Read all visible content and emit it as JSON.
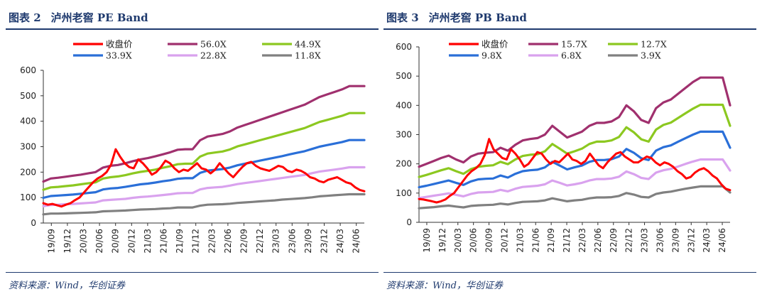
{
  "charts": [
    {
      "figure_label": "图表 2",
      "figure_title": "泸州老窖 PE Band",
      "source": "资料来源：Wind，华创证券"
    },
    {
      "figure_label": "图表 3",
      "figure_title": "泸州老窖 PB Band",
      "source": "资料来源：Wind，华创证券"
    }
  ],
  "chart_data": [
    {
      "type": "line",
      "title": "泸州老窖 PE Band",
      "x_ticks": [
        "19/09",
        "19/12",
        "20/03",
        "20/06",
        "20/09",
        "20/12",
        "21/03",
        "21/06",
        "21/09",
        "21/12",
        "22/03",
        "22/06",
        "22/09",
        "22/12",
        "23/03",
        "23/06",
        "23/09",
        "23/12",
        "24/03",
        "24/06"
      ],
      "ylim": [
        0,
        600
      ],
      "y_ticks": [
        "0",
        "100",
        "200",
        "300",
        "400",
        "500",
        "600"
      ],
      "legend_position": "top",
      "series": [
        {
          "name": "收盘价",
          "color": "#ff0000",
          "values": [
            78,
            72,
            75,
            70,
            65,
            72,
            78,
            90,
            100,
            120,
            140,
            160,
            175,
            185,
            200,
            230,
            290,
            260,
            235,
            220,
            215,
            250,
            235,
            215,
            190,
            200,
            220,
            245,
            235,
            215,
            200,
            210,
            205,
            220,
            235,
            215,
            210,
            195,
            210,
            235,
            215,
            195,
            180,
            200,
            220,
            235,
            240,
            225,
            215,
            210,
            205,
            215,
            225,
            220,
            205,
            200,
            210,
            205,
            195,
            180,
            175,
            165,
            160,
            170,
            175,
            180,
            170,
            160,
            155,
            140,
            130,
            125
          ]
        },
        {
          "name": "56.0X",
          "color": "#a0306e",
          "values": [
            163,
            175,
            178,
            182,
            186,
            190,
            195,
            200,
            218,
            225,
            228,
            235,
            243,
            250,
            255,
            262,
            270,
            278,
            288,
            290,
            290,
            325,
            340,
            345,
            350,
            360,
            375,
            385,
            395,
            405,
            415,
            425,
            435,
            445,
            455,
            465,
            480,
            495,
            505,
            515,
            525,
            538,
            538,
            538
          ]
        },
        {
          "name": "44.9X",
          "color": "#8cc820",
          "values": [
            131,
            140,
            142,
            145,
            148,
            152,
            156,
            160,
            175,
            180,
            183,
            188,
            195,
            201,
            205,
            210,
            217,
            223,
            231,
            233,
            233,
            261,
            273,
            277,
            281,
            289,
            301,
            309,
            317,
            325,
            333,
            341,
            349,
            357,
            365,
            373,
            385,
            397,
            405,
            413,
            421,
            432,
            432,
            432
          ]
        },
        {
          "name": "33.9X",
          "color": "#2a6fd8",
          "values": [
            99,
            106,
            108,
            110,
            112,
            115,
            118,
            121,
            132,
            136,
            138,
            142,
            147,
            152,
            155,
            159,
            164,
            168,
            174,
            176,
            176,
            197,
            206,
            209,
            212,
            218,
            227,
            233,
            239,
            245,
            251,
            257,
            263,
            270,
            276,
            282,
            291,
            300,
            306,
            312,
            318,
            326,
            326,
            326
          ]
        },
        {
          "name": "22.8X",
          "color": "#d9a2ee",
          "values": [
            66,
            71,
            72,
            74,
            75,
            77,
            79,
            81,
            89,
            91,
            93,
            95,
            99,
            102,
            104,
            107,
            110,
            113,
            117,
            118,
            118,
            132,
            138,
            140,
            142,
            147,
            153,
            157,
            161,
            165,
            169,
            173,
            177,
            181,
            185,
            189,
            196,
            202,
            206,
            210,
            214,
            219,
            219,
            219
          ]
        },
        {
          "name": "11.8X",
          "color": "#808080",
          "values": [
            34,
            37,
            37,
            38,
            39,
            40,
            41,
            42,
            46,
            47,
            48,
            49,
            51,
            53,
            54,
            55,
            57,
            58,
            61,
            61,
            61,
            68,
            72,
            73,
            74,
            76,
            79,
            81,
            83,
            85,
            87,
            89,
            92,
            94,
            96,
            98,
            101,
            105,
            107,
            109,
            111,
            113,
            113,
            113
          ]
        }
      ]
    },
    {
      "type": "line",
      "title": "泸州老窖 PB Band",
      "x_ticks": [
        "19/09",
        "19/12",
        "20/03",
        "20/06",
        "20/09",
        "20/12",
        "21/03",
        "21/06",
        "21/09",
        "21/12",
        "22/03",
        "22/06",
        "22/09",
        "22/12",
        "23/03",
        "23/06",
        "23/09",
        "23/12",
        "24/03",
        "24/06"
      ],
      "ylim": [
        0,
        600
      ],
      "y_ticks": [
        "0",
        "100",
        "200",
        "300",
        "400",
        "500",
        "600"
      ],
      "legend_position": "top",
      "series": [
        {
          "name": "收盘价",
          "color": "#ff0000",
          "values": [
            80,
            78,
            75,
            72,
            68,
            72,
            78,
            90,
            100,
            120,
            140,
            160,
            175,
            185,
            200,
            230,
            285,
            250,
            235,
            220,
            215,
            250,
            235,
            215,
            190,
            200,
            220,
            240,
            235,
            215,
            200,
            210,
            205,
            220,
            235,
            215,
            210,
            200,
            210,
            235,
            215,
            195,
            185,
            205,
            220,
            235,
            240,
            225,
            215,
            205,
            205,
            215,
            225,
            220,
            205,
            195,
            205,
            200,
            190,
            175,
            165,
            150,
            155,
            170,
            180,
            185,
            175,
            160,
            150,
            130,
            115,
            110
          ]
        },
        {
          "name": "15.7X",
          "color": "#a0306e",
          "values": [
            190,
            200,
            210,
            220,
            228,
            215,
            205,
            225,
            235,
            238,
            240,
            255,
            245,
            265,
            280,
            285,
            288,
            300,
            330,
            310,
            290,
            300,
            310,
            330,
            340,
            340,
            345,
            360,
            400,
            380,
            350,
            340,
            390,
            410,
            420,
            440,
            460,
            480,
            495,
            495,
            495,
            495,
            400
          ]
        },
        {
          "name": "12.7X",
          "color": "#8cc820",
          "values": [
            155,
            162,
            170,
            178,
            185,
            175,
            166,
            182,
            190,
            193,
            195,
            207,
            199,
            215,
            227,
            231,
            233,
            243,
            268,
            252,
            235,
            243,
            252,
            268,
            276,
            276,
            280,
            292,
            325,
            308,
            284,
            276,
            317,
            333,
            341,
            357,
            373,
            389,
            402,
            402,
            402,
            402,
            330
          ]
        },
        {
          "name": "9.8X",
          "color": "#2a6fd8",
          "values": [
            120,
            125,
            131,
            137,
            143,
            135,
            128,
            140,
            147,
            149,
            150,
            160,
            153,
            166,
            175,
            178,
            180,
            188,
            207,
            194,
            181,
            188,
            194,
            207,
            213,
            213,
            216,
            225,
            251,
            238,
            219,
            213,
            245,
            257,
            263,
            276,
            288,
            300,
            310,
            310,
            310,
            310,
            255
          ]
        },
        {
          "name": "6.8X",
          "color": "#d9a2ee",
          "values": [
            83,
            87,
            91,
            95,
            99,
            94,
            89,
            97,
            102,
            103,
            104,
            111,
            106,
            115,
            121,
            123,
            125,
            130,
            143,
            135,
            126,
            130,
            135,
            143,
            148,
            148,
            150,
            156,
            174,
            165,
            152,
            148,
            170,
            178,
            183,
            191,
            200,
            208,
            215,
            215,
            215,
            215,
            177
          ]
        },
        {
          "name": "3.9X",
          "color": "#808080",
          "values": [
            48,
            50,
            52,
            55,
            57,
            54,
            51,
            56,
            58,
            59,
            60,
            64,
            61,
            66,
            70,
            71,
            72,
            75,
            82,
            77,
            72,
            75,
            77,
            82,
            85,
            85,
            86,
            90,
            100,
            95,
            87,
            85,
            97,
            102,
            105,
            110,
            115,
            119,
            123,
            123,
            123,
            123,
            102
          ]
        }
      ]
    }
  ]
}
